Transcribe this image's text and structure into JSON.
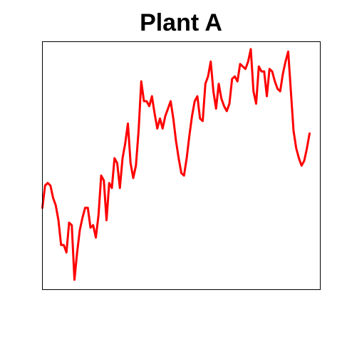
{
  "chart_data": {
    "type": "line",
    "title": "Plant A",
    "xlabel": "",
    "ylabel": "",
    "axes_visible": false,
    "grid": false,
    "legend": "none",
    "line_color": "#ff0000",
    "frame_color": "#000000",
    "xlim": [
      0,
      104
    ],
    "ylim": [
      0,
      100
    ],
    "series": [
      {
        "x": [
          0,
          1,
          2,
          3,
          4,
          5,
          6,
          7,
          8,
          9,
          10,
          11,
          12,
          13,
          14,
          15,
          16,
          17,
          18,
          19,
          20,
          21,
          22,
          23,
          24,
          25,
          26,
          27,
          28,
          29,
          30,
          31,
          32,
          33,
          34,
          35,
          36,
          37,
          38,
          39,
          40,
          41,
          42,
          43,
          44,
          45,
          46,
          47,
          48,
          49,
          50,
          51,
          52,
          53,
          54,
          55,
          56,
          57,
          58,
          59,
          60,
          61,
          62,
          63,
          64,
          65,
          66,
          67,
          68,
          69,
          70,
          71,
          72,
          73,
          74,
          75,
          76,
          77,
          78,
          79,
          80,
          81,
          82,
          83,
          84,
          85,
          86,
          87,
          88,
          89,
          90,
          91,
          92,
          93,
          94,
          95,
          96,
          97,
          98,
          99,
          100
        ],
        "values": [
          33,
          42,
          43,
          42,
          37,
          34,
          28,
          18,
          18,
          15,
          27,
          26,
          4,
          15,
          24,
          29,
          33,
          33,
          25,
          26,
          21,
          30,
          46,
          44,
          28,
          43,
          41,
          53,
          51,
          41,
          53,
          59,
          67,
          51,
          45,
          50,
          64,
          84,
          76,
          76,
          74,
          78,
          71,
          65,
          69,
          65,
          70,
          73,
          76,
          69,
          60,
          53,
          47,
          46,
          53,
          62,
          70,
          76,
          78,
          69,
          68,
          83,
          86,
          92,
          80,
          73,
          83,
          77,
          74,
          72,
          75,
          85,
          86,
          84,
          91,
          90,
          89,
          92,
          97,
          80,
          75,
          90,
          88,
          88,
          78,
          89,
          88,
          84,
          81,
          80,
          87,
          92,
          96,
          80,
          64,
          57,
          53,
          50,
          52,
          57,
          63
        ]
      }
    ]
  }
}
